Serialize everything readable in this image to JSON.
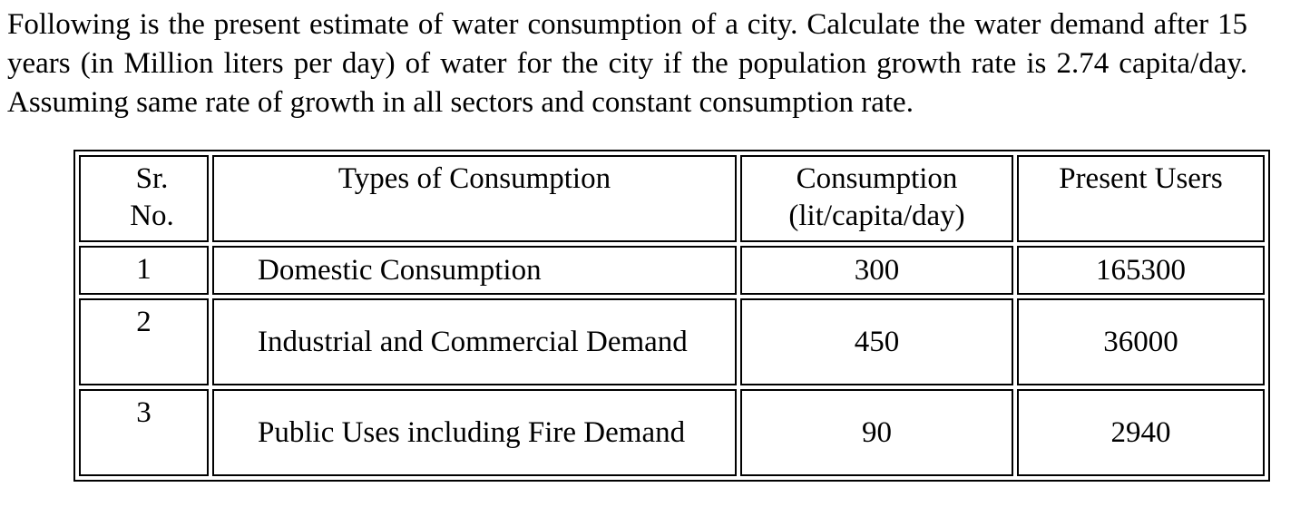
{
  "problem": {
    "text": "Following is the present estimate of water consumption of a city. Calculate the water demand after 15 years (in Million liters per day) of water for the city if the population growth rate is 2.74 capita/day. Assuming same rate of growth in all sectors and constant consumption rate."
  },
  "table": {
    "headers": {
      "sr_line1": "Sr.",
      "sr_line2": "No.",
      "type": "Types of Consumption",
      "consumption_line1": "Consumption",
      "consumption_line2": "(lit/capita/day)",
      "users": "Present Users"
    },
    "rows": [
      {
        "sr": "1",
        "type": "Domestic Consumption",
        "consumption": "300",
        "users": "165300"
      },
      {
        "sr": "2",
        "type": "Industrial and Commercial Demand",
        "consumption": "450",
        "users": "36000"
      },
      {
        "sr": "3",
        "type": "Public Uses including Fire Demand",
        "consumption": "90",
        "users": "2940"
      }
    ]
  }
}
